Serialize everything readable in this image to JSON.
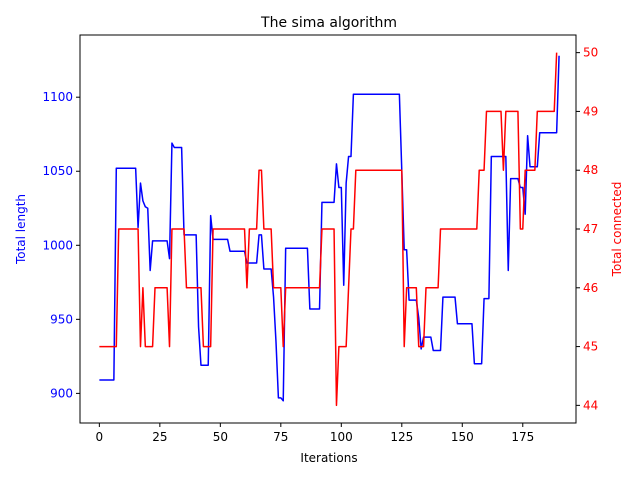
{
  "chart_data": {
    "type": "line",
    "title": "The sima algorithm",
    "xlabel": "Iterations",
    "ylabel_left": "Total length",
    "ylabel_right": "Total connected",
    "xlim": [
      -8,
      197
    ],
    "ylim_left": [
      880,
      1142
    ],
    "ylim_right": [
      43.7,
      50.3
    ],
    "x_ticks": [
      0,
      25,
      50,
      75,
      100,
      125,
      150,
      175
    ],
    "y_left_ticks": [
      900,
      950,
      1000,
      1050,
      1100
    ],
    "y_right_ticks": [
      44,
      45,
      46,
      47,
      48,
      49,
      50
    ],
    "grid": false,
    "colors": {
      "left": "#0000ff",
      "right": "#ff0000"
    },
    "series": [
      {
        "axis": "left",
        "color": "#0000ff",
        "points": [
          [
            0,
            909
          ],
          [
            6,
            909
          ],
          [
            7,
            1052
          ],
          [
            15,
            1052
          ],
          [
            16,
            1012
          ],
          [
            17,
            1042
          ],
          [
            18,
            1030
          ],
          [
            19,
            1026
          ],
          [
            20,
            1025
          ],
          [
            21,
            983
          ],
          [
            22,
            1003
          ],
          [
            28,
            1003
          ],
          [
            29,
            991
          ],
          [
            30,
            1069
          ],
          [
            31,
            1066
          ],
          [
            34,
            1066
          ],
          [
            35,
            1007
          ],
          [
            40,
            1007
          ],
          [
            41,
            945
          ],
          [
            42,
            919
          ],
          [
            45,
            919
          ],
          [
            46,
            1020
          ],
          [
            47,
            1004
          ],
          [
            53,
            1004
          ],
          [
            54,
            996
          ],
          [
            60,
            996
          ],
          [
            61,
            988
          ],
          [
            65,
            988
          ],
          [
            66,
            1007
          ],
          [
            67,
            1007
          ],
          [
            68,
            984
          ],
          [
            71,
            984
          ],
          [
            72,
            965
          ],
          [
            73,
            935
          ],
          [
            74,
            897
          ],
          [
            75,
            897
          ],
          [
            76,
            895
          ],
          [
            77,
            998
          ],
          [
            86,
            998
          ],
          [
            87,
            957
          ],
          [
            91,
            957
          ],
          [
            92,
            1029
          ],
          [
            97,
            1029
          ],
          [
            98,
            1055
          ],
          [
            99,
            1039
          ],
          [
            100,
            1039
          ],
          [
            101,
            973
          ],
          [
            102,
            1042
          ],
          [
            103,
            1060
          ],
          [
            104,
            1060
          ],
          [
            105,
            1102
          ],
          [
            124,
            1102
          ],
          [
            125,
            1050
          ],
          [
            126,
            997
          ],
          [
            127,
            997
          ],
          [
            128,
            963
          ],
          [
            131,
            963
          ],
          [
            132,
            951
          ],
          [
            133,
            930
          ],
          [
            134,
            938
          ],
          [
            137,
            938
          ],
          [
            138,
            929
          ],
          [
            141,
            929
          ],
          [
            142,
            965
          ],
          [
            147,
            965
          ],
          [
            148,
            947
          ],
          [
            154,
            947
          ],
          [
            155,
            920
          ],
          [
            158,
            920
          ],
          [
            159,
            964
          ],
          [
            161,
            964
          ],
          [
            162,
            1060
          ],
          [
            168,
            1060
          ],
          [
            169,
            983
          ],
          [
            170,
            1045
          ],
          [
            173,
            1045
          ],
          [
            174,
            1039
          ],
          [
            175,
            1039
          ],
          [
            176,
            1021
          ],
          [
            177,
            1074
          ],
          [
            178,
            1053
          ],
          [
            181,
            1053
          ],
          [
            182,
            1076
          ],
          [
            189,
            1076
          ],
          [
            190,
            1128
          ]
        ]
      },
      {
        "axis": "right",
        "color": "#ff0000",
        "points": [
          [
            0,
            45
          ],
          [
            7,
            45
          ],
          [
            8,
            47
          ],
          [
            16,
            47
          ],
          [
            17,
            45
          ],
          [
            18,
            46
          ],
          [
            19,
            45
          ],
          [
            22,
            45
          ],
          [
            23,
            46
          ],
          [
            28,
            46
          ],
          [
            29,
            45
          ],
          [
            30,
            47
          ],
          [
            35,
            47
          ],
          [
            36,
            46
          ],
          [
            42,
            46
          ],
          [
            43,
            45
          ],
          [
            46,
            45
          ],
          [
            47,
            47
          ],
          [
            60,
            47
          ],
          [
            61,
            46
          ],
          [
            62,
            47
          ],
          [
            65,
            47
          ],
          [
            66,
            48
          ],
          [
            67,
            48
          ],
          [
            68,
            47
          ],
          [
            71,
            47
          ],
          [
            72,
            46
          ],
          [
            75,
            46
          ],
          [
            76,
            45
          ],
          [
            77,
            46
          ],
          [
            91,
            46
          ],
          [
            92,
            47
          ],
          [
            97,
            47
          ],
          [
            98,
            44
          ],
          [
            99,
            45
          ],
          [
            102,
            45
          ],
          [
            103,
            46
          ],
          [
            104,
            47
          ],
          [
            105,
            47
          ],
          [
            106,
            48
          ],
          [
            124,
            48
          ],
          [
            125,
            48
          ],
          [
            126,
            45
          ],
          [
            127,
            46
          ],
          [
            131,
            46
          ],
          [
            132,
            45
          ],
          [
            134,
            45
          ],
          [
            135,
            46
          ],
          [
            140,
            46
          ],
          [
            141,
            47
          ],
          [
            156,
            47
          ],
          [
            157,
            48
          ],
          [
            159,
            48
          ],
          [
            160,
            49
          ],
          [
            166,
            49
          ],
          [
            167,
            48
          ],
          [
            168,
            49
          ],
          [
            173,
            49
          ],
          [
            174,
            47
          ],
          [
            175,
            47
          ],
          [
            176,
            48
          ],
          [
            180,
            48
          ],
          [
            181,
            49
          ],
          [
            188,
            49
          ],
          [
            189,
            50
          ]
        ]
      }
    ]
  }
}
